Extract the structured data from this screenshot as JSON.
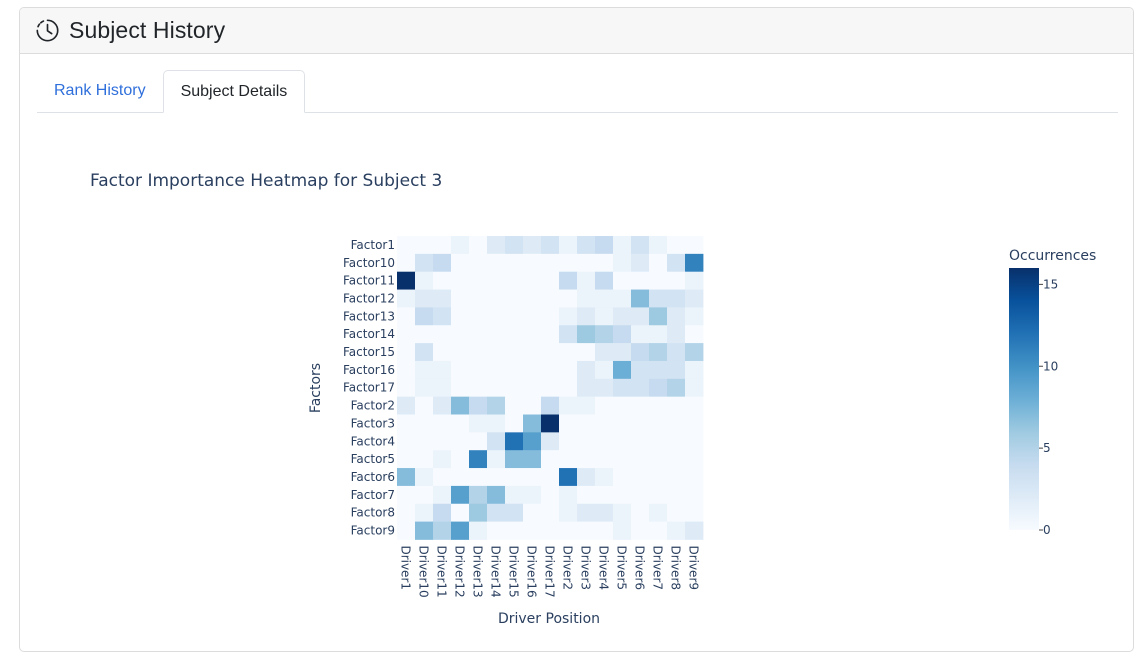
{
  "header": {
    "title": "Subject History",
    "icon": "clock-icon"
  },
  "tabs": [
    {
      "label": "Rank History",
      "active": false
    },
    {
      "label": "Subject Details",
      "active": true
    }
  ],
  "chart_data": {
    "type": "heatmap",
    "title": "Factor Importance Heatmap for Subject 3",
    "xlabel": "Driver Position",
    "ylabel": "Factors",
    "x": [
      "Driver1",
      "Driver10",
      "Driver11",
      "Driver12",
      "Driver13",
      "Driver14",
      "Driver15",
      "Driver16",
      "Driver17",
      "Driver2",
      "Driver3",
      "Driver4",
      "Driver5",
      "Driver6",
      "Driver7",
      "Driver8",
      "Driver9"
    ],
    "y": [
      "Factor1",
      "Factor10",
      "Factor11",
      "Factor12",
      "Factor13",
      "Factor14",
      "Factor15",
      "Factor16",
      "Factor17",
      "Factor2",
      "Factor3",
      "Factor4",
      "Factor5",
      "Factor6",
      "Factor7",
      "Factor8",
      "Factor9"
    ],
    "z": [
      [
        0,
        0,
        0,
        1,
        0,
        2,
        3,
        2,
        3,
        1,
        3,
        4,
        1,
        3,
        1,
        0,
        0
      ],
      [
        0,
        3,
        4,
        0,
        0,
        0,
        0,
        0,
        0,
        0,
        0,
        0,
        1,
        2,
        0,
        3,
        11
      ],
      [
        16,
        1,
        0,
        0,
        0,
        0,
        0,
        0,
        0,
        4,
        1,
        4,
        0,
        0,
        0,
        0,
        1
      ],
      [
        1,
        2,
        2,
        0,
        0,
        0,
        0,
        0,
        0,
        0,
        1,
        1,
        1,
        7,
        3,
        3,
        2
      ],
      [
        0,
        4,
        3,
        0,
        0,
        0,
        0,
        0,
        0,
        1,
        2,
        1,
        2,
        2,
        6,
        2,
        1
      ],
      [
        0,
        0,
        0,
        0,
        0,
        0,
        0,
        0,
        0,
        3,
        6,
        5,
        4,
        1,
        1,
        2,
        0
      ],
      [
        0,
        3,
        0,
        0,
        0,
        0,
        0,
        0,
        0,
        0,
        0,
        2,
        2,
        4,
        5,
        3,
        5
      ],
      [
        0,
        1,
        1,
        0,
        0,
        0,
        0,
        0,
        0,
        0,
        2,
        1,
        8,
        3,
        3,
        3,
        1
      ],
      [
        0,
        1,
        1,
        0,
        0,
        0,
        0,
        0,
        0,
        0,
        2,
        2,
        3,
        3,
        4,
        5,
        1
      ],
      [
        2,
        0,
        2,
        7,
        4,
        5,
        0,
        0,
        4,
        1,
        1,
        0,
        0,
        0,
        0,
        0,
        0
      ],
      [
        0,
        0,
        0,
        0,
        1,
        1,
        0,
        7,
        16,
        0,
        0,
        0,
        0,
        0,
        0,
        0,
        0
      ],
      [
        0,
        0,
        0,
        0,
        0,
        3,
        12,
        9,
        2,
        0,
        0,
        0,
        0,
        0,
        0,
        0,
        0
      ],
      [
        0,
        0,
        1,
        0,
        11,
        1,
        7,
        7,
        0,
        0,
        0,
        0,
        0,
        0,
        0,
        0,
        0
      ],
      [
        7,
        1,
        0,
        0,
        0,
        0,
        0,
        0,
        0,
        12,
        2,
        1,
        0,
        0,
        0,
        0,
        0
      ],
      [
        0,
        0,
        1,
        9,
        5,
        7,
        1,
        1,
        0,
        1,
        0,
        0,
        0,
        0,
        0,
        0,
        0
      ],
      [
        0,
        1,
        4,
        0,
        6,
        3,
        3,
        0,
        0,
        1,
        2,
        2,
        1,
        0,
        1,
        0,
        0
      ],
      [
        0,
        7,
        5,
        9,
        1,
        0,
        0,
        0,
        0,
        0,
        0,
        0,
        1,
        0,
        0,
        1,
        2
      ]
    ],
    "colorbar": {
      "title": "Occurrences",
      "ticks": [
        0,
        5,
        10,
        15
      ],
      "zmin": 0,
      "zmax": 16
    },
    "colorscale": "Blues"
  }
}
